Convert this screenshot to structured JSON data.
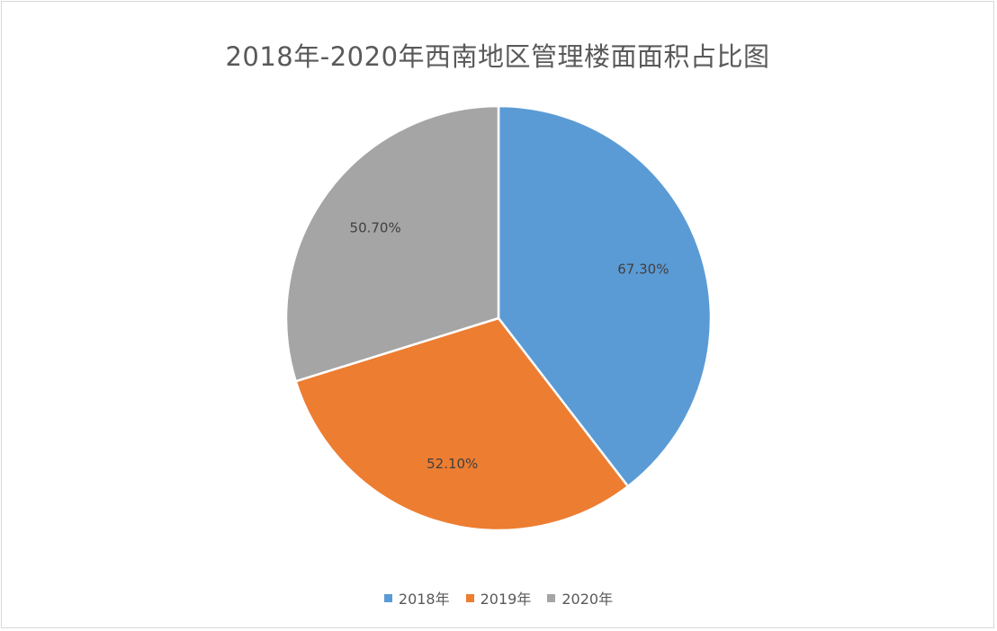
{
  "chart_data": {
    "type": "pie",
    "title": "2018年-2020年西南地区管理楼面面积占比图",
    "categories": [
      "2018年",
      "2019年",
      "2020年"
    ],
    "values": [
      67.3,
      52.1,
      50.7
    ],
    "labels": [
      "67.30%",
      "52.10%",
      "50.70%"
    ],
    "colors": [
      "#5b9bd5",
      "#ed7d31",
      "#a5a5a5"
    ],
    "legend_position": "bottom",
    "start_angle_deg": 0,
    "direction": "clockwise"
  }
}
